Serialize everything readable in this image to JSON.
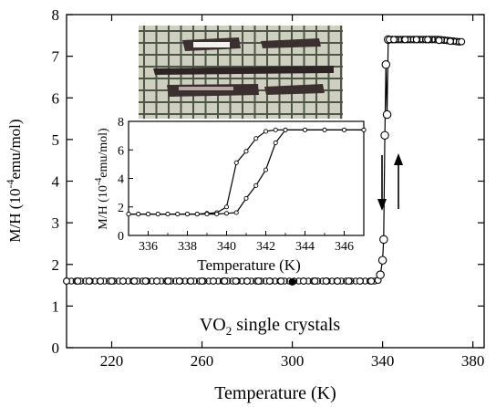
{
  "chart_data": [
    {
      "type": "scatter",
      "xlabel": "Temperature (K)",
      "ylabel": "M/H (10",
      "ylabel_exp": "-4",
      "ylabel_unit": "emu/mol)",
      "xlim": [
        200,
        385
      ],
      "ylim": [
        0,
        8
      ],
      "xticks": [
        "220",
        "260",
        "300",
        "340",
        "380"
      ],
      "yticks": [
        "0",
        "1",
        "2",
        "3",
        "4",
        "5",
        "6",
        "7",
        "8"
      ],
      "annotation": "VO",
      "annotation_sub": "2",
      "annotation_rest": " single crystals",
      "series": [
        {
          "x": [
            200,
            205,
            210,
            215,
            220,
            225,
            230,
            235,
            240,
            245,
            250,
            255,
            260,
            265,
            270,
            275,
            280,
            285,
            290,
            295,
            300,
            305,
            310,
            315,
            320,
            325,
            330,
            335,
            338,
            339,
            340,
            340.5,
            341,
            341.5,
            342,
            342.5,
            343,
            345,
            350,
            355,
            360,
            365,
            370,
            375
          ],
          "y": [
            1.6,
            1.6,
            1.6,
            1.6,
            1.6,
            1.6,
            1.6,
            1.6,
            1.6,
            1.6,
            1.6,
            1.6,
            1.6,
            1.6,
            1.6,
            1.6,
            1.6,
            1.6,
            1.6,
            1.6,
            1.58,
            1.6,
            1.6,
            1.6,
            1.6,
            1.6,
            1.6,
            1.6,
            1.62,
            1.75,
            2.1,
            2.6,
            5.1,
            6.8,
            5.6,
            7.4,
            7.4,
            7.4,
            7.4,
            7.4,
            7.4,
            7.38,
            7.36,
            7.35
          ]
        }
      ],
      "arrows": [
        "cooling-down",
        "heating-up"
      ]
    },
    {
      "type": "line",
      "xlabel": "Temperature (K)",
      "ylabel": "M/H (10",
      "ylabel_exp": "-4",
      "ylabel_unit": "emu/mol)",
      "xlim": [
        335,
        347
      ],
      "ylim": [
        0,
        8
      ],
      "xticks": [
        "336",
        "338",
        "340",
        "342",
        "344",
        "346"
      ],
      "yticks": [
        "0",
        "2",
        "4",
        "6",
        "8"
      ],
      "series": [
        {
          "x": [
            335,
            335.5,
            336,
            336.5,
            337,
            337.5,
            338,
            338.5,
            339,
            339.5,
            340,
            340.5,
            341,
            341.5,
            342,
            342.5,
            343,
            344,
            345,
            346,
            347
          ],
          "y": [
            1.5,
            1.5,
            1.5,
            1.5,
            1.5,
            1.5,
            1.5,
            1.5,
            1.55,
            1.6,
            2.0,
            5.1,
            5.9,
            6.8,
            7.3,
            7.4,
            7.4,
            7.4,
            7.4,
            7.4,
            7.4
          ]
        },
        {
          "x": [
            335,
            335.5,
            336,
            336.5,
            337,
            337.5,
            338,
            338.5,
            339,
            339.5,
            340,
            340.5,
            341,
            341.5,
            342,
            342.5,
            343,
            344,
            345,
            346,
            347
          ],
          "y": [
            1.5,
            1.5,
            1.5,
            1.5,
            1.5,
            1.5,
            1.5,
            1.5,
            1.5,
            1.5,
            1.55,
            1.6,
            2.6,
            3.5,
            4.6,
            6.5,
            7.4,
            7.4,
            7.4,
            7.4,
            7.4
          ]
        }
      ]
    }
  ],
  "photo": {
    "grid_color": "#4d5448",
    "background_color": "#cfcfc0",
    "crystal_color": "#3c2f30"
  }
}
